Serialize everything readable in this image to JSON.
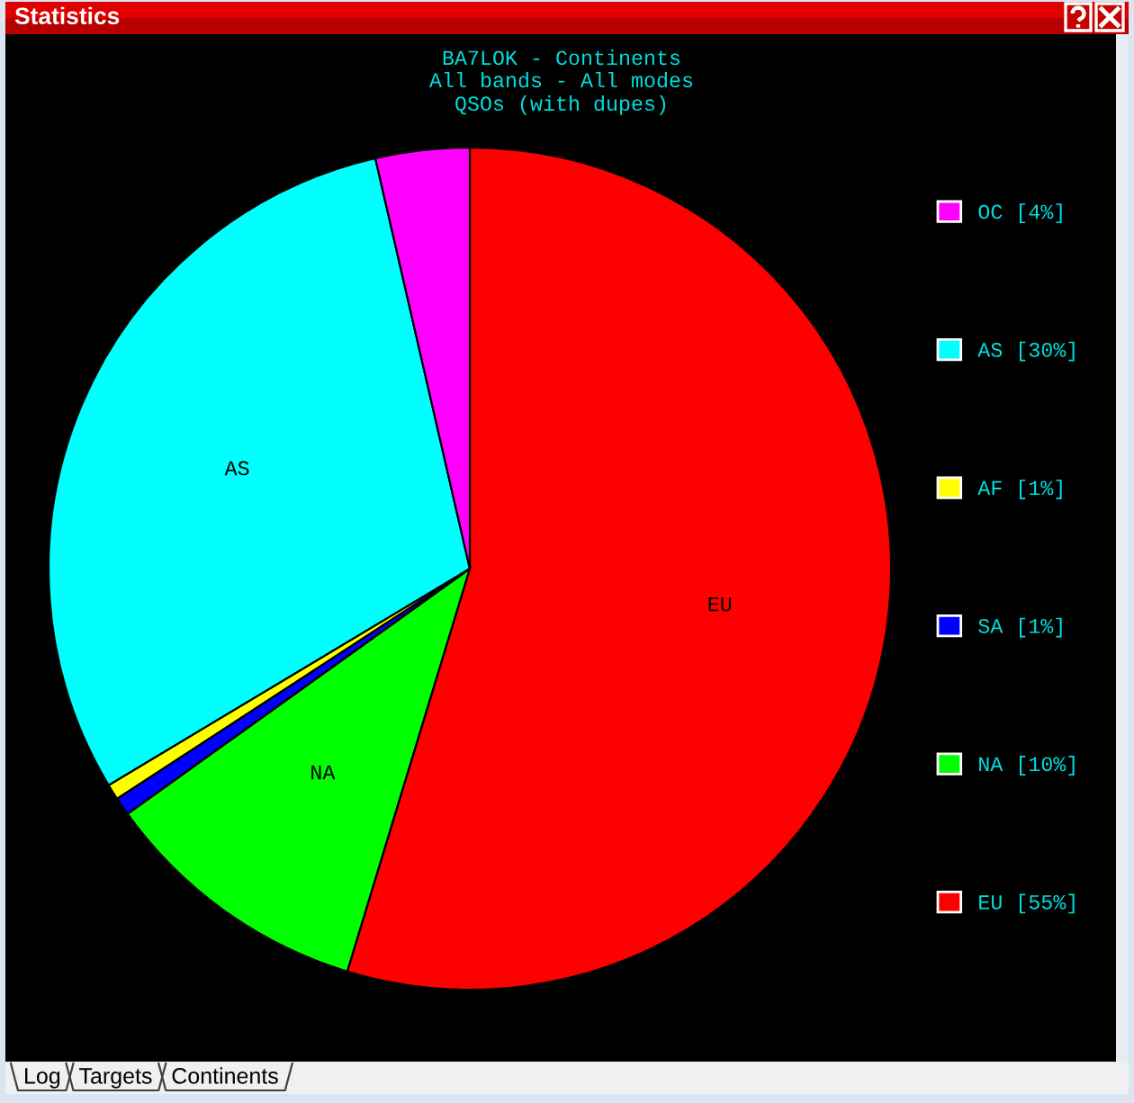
{
  "chart_data": {
    "type": "pie",
    "title": "BA7LOK - Continents",
    "subtitle": "All bands - All modes\nQSOs (with dupes)",
    "categories": [
      "EU",
      "NA",
      "SA",
      "AF",
      "AS",
      "OC"
    ],
    "values": [
      54.7,
      10.4,
      0.7,
      0.6,
      30.0,
      3.6
    ],
    "colors": [
      "#ff0000",
      "#00ff00",
      "#0000ff",
      "#ffff00",
      "#00ffff",
      "#ff00ff"
    ],
    "value_labels": [
      "[55%]",
      "[10%]",
      "[1%]",
      "[1%]",
      "[30%]",
      "[4%]"
    ],
    "legend": "right",
    "annotations": [
      "Statistics",
      "Log",
      "Targets",
      "Continents"
    ]
  }
}
